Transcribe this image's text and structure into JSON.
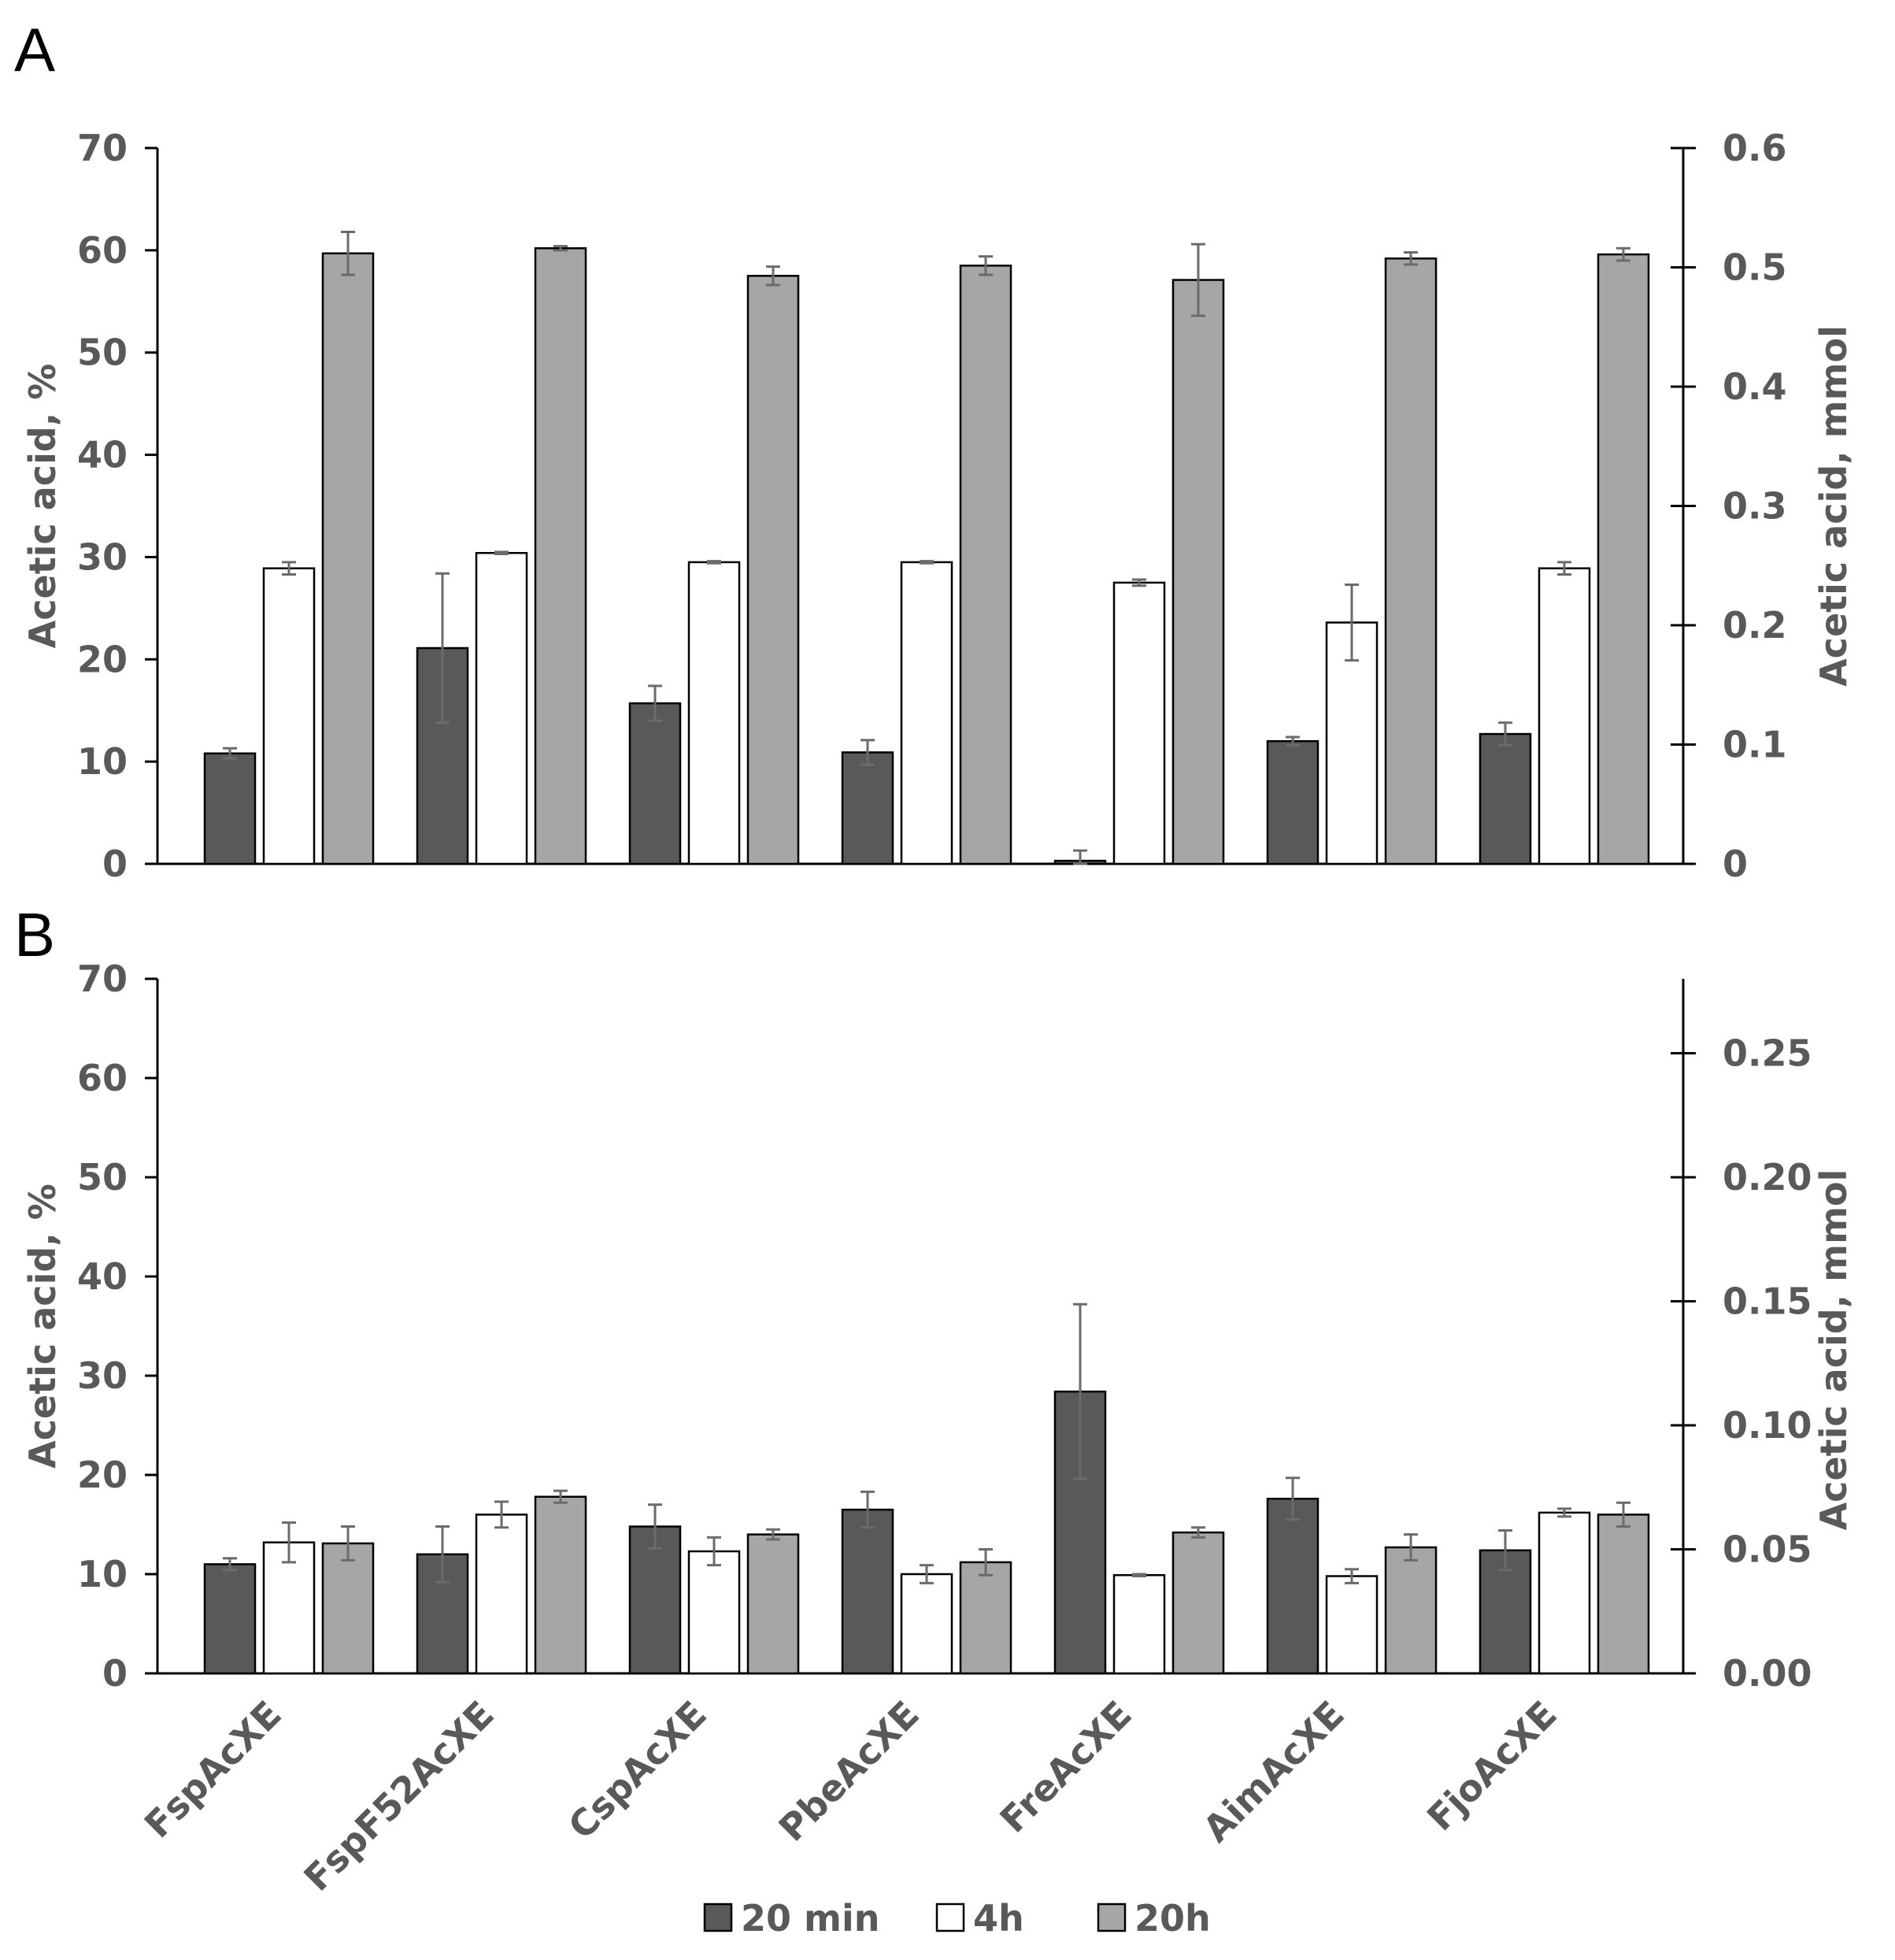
{
  "legend": [
    "20 min",
    "4h",
    "20h"
  ],
  "colors": {
    "20 min": "#595959",
    "4h": "#ffffff",
    "20h": "#a6a6a6"
  },
  "chart_data": [
    {
      "panel": "A",
      "type": "bar",
      "categories": [
        "FspAcXE",
        "FspF52AcXE",
        "CspAcXE",
        "PbeAcXE",
        "FreAcXE",
        "AimAcXE",
        "FjoAcXE"
      ],
      "ylabel": "Acetic acid, %",
      "ylim": [
        0,
        70
      ],
      "yticks": [
        "0",
        "10",
        "20",
        "30",
        "40",
        "50",
        "60",
        "70"
      ],
      "y2label": "Acetic acid, mmol",
      "y2lim": [
        0,
        0.6
      ],
      "y2ticks": [
        "0",
        "0.1",
        "0.2",
        "0.3",
        "0.4",
        "0.5",
        "0.6"
      ],
      "series": [
        {
          "name": "20 min",
          "values": [
            10.8,
            21.1,
            15.7,
            10.9,
            0.3,
            12.0,
            12.7
          ],
          "errors": [
            0.5,
            7.3,
            1.7,
            1.2,
            1.0,
            0.4,
            1.1
          ]
        },
        {
          "name": "4h",
          "values": [
            28.9,
            30.4,
            29.5,
            29.5,
            27.5,
            23.6,
            28.9
          ],
          "errors": [
            0.6,
            0.1,
            0.1,
            0.1,
            0.3,
            3.7,
            0.6
          ]
        },
        {
          "name": "20h",
          "values": [
            59.7,
            60.2,
            57.5,
            58.5,
            57.1,
            59.2,
            59.6
          ],
          "errors": [
            2.1,
            0.2,
            0.9,
            0.9,
            3.5,
            0.6,
            0.6
          ]
        }
      ]
    },
    {
      "panel": "B",
      "type": "bar",
      "categories": [
        "FspAcXE",
        "FspF52AcXE",
        "CspAcXE",
        "PbeAcXE",
        "FreAcXE",
        "AimAcXE",
        "FjoAcXE"
      ],
      "ylabel": "Acetic acid, %",
      "ylim": [
        0,
        70
      ],
      "yticks": [
        "0",
        "10",
        "20",
        "30",
        "40",
        "50",
        "60",
        "70"
      ],
      "y2label": "Acetic acid, mmol",
      "y2lim": [
        0,
        0.28
      ],
      "y2ticks": [
        "0.00",
        "0.05",
        "0.10",
        "0.15",
        "0.20",
        "0.25"
      ],
      "series": [
        {
          "name": "20 min",
          "values": [
            11.0,
            12.0,
            14.8,
            16.5,
            28.4,
            17.6,
            12.4
          ],
          "errors": [
            0.6,
            2.8,
            2.2,
            1.8,
            8.8,
            2.1,
            2.0
          ]
        },
        {
          "name": "4h",
          "values": [
            13.2,
            16.0,
            12.3,
            10.0,
            9.9,
            9.8,
            16.2
          ],
          "errors": [
            2.0,
            1.3,
            1.4,
            0.9,
            0.1,
            0.7,
            0.4
          ]
        },
        {
          "name": "20h",
          "values": [
            13.1,
            17.8,
            14.0,
            11.2,
            14.2,
            12.7,
            16.0
          ],
          "errors": [
            1.7,
            0.6,
            0.5,
            1.3,
            0.5,
            1.3,
            1.2
          ]
        }
      ]
    }
  ]
}
